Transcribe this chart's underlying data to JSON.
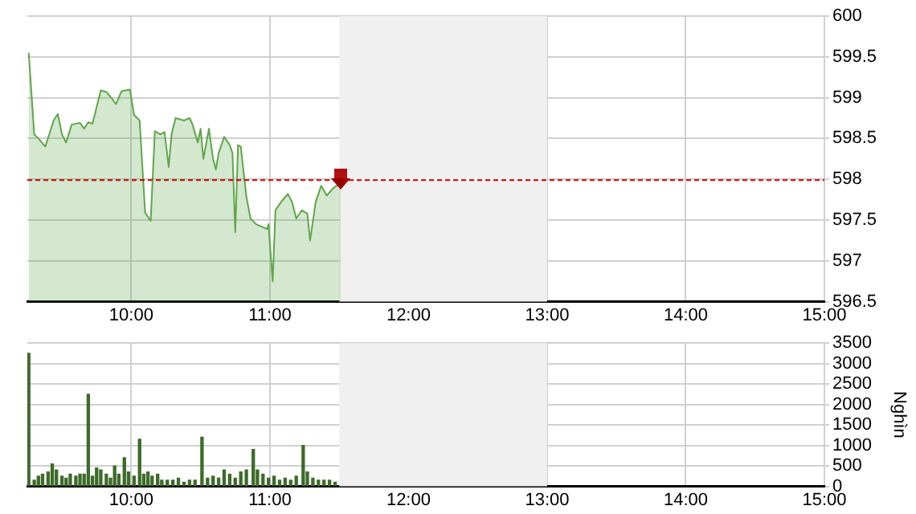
{
  "chart_data": [
    {
      "type": "area",
      "legend": false,
      "grid": true,
      "marker": "none",
      "xlim": [
        9.25,
        15
      ],
      "xticks": [
        {
          "value": 10,
          "label": "10:00"
        },
        {
          "value": 11,
          "label": "11:00"
        },
        {
          "value": 12,
          "label": "12:00"
        },
        {
          "value": 13,
          "label": "13:00"
        },
        {
          "value": 14,
          "label": "14:00"
        },
        {
          "value": 15,
          "label": "15:00"
        }
      ],
      "ylim": [
        596.5,
        600
      ],
      "yticks": [
        596.5,
        597,
        597.5,
        598,
        598.5,
        599,
        599.5,
        600
      ],
      "x": [
        9.26,
        9.3,
        9.33,
        9.38,
        9.44,
        9.47,
        9.5,
        9.53,
        9.57,
        9.63,
        9.66,
        9.69,
        9.72,
        9.78,
        9.82,
        9.86,
        9.89,
        9.93,
        9.99,
        10.02,
        10.06,
        10.1,
        10.14,
        10.17,
        10.21,
        10.24,
        10.27,
        10.29,
        10.32,
        10.38,
        10.42,
        10.44,
        10.48,
        10.5,
        10.52,
        10.56,
        10.59,
        10.61,
        10.63,
        10.67,
        10.71,
        10.73,
        10.75,
        10.77,
        10.79,
        10.83,
        10.86,
        10.9,
        10.94,
        10.98,
        10.99,
        11.02,
        11.04,
        11.08,
        11.13,
        11.16,
        11.19,
        11.23,
        11.27,
        11.29,
        11.33,
        11.37,
        11.41,
        11.45,
        11.48,
        11.51
      ],
      "series": [
        {
          "color": "#5fa64a",
          "values": [
            599.55,
            598.55,
            598.5,
            598.4,
            598.72,
            598.8,
            598.55,
            598.45,
            598.67,
            598.69,
            598.62,
            598.7,
            598.68,
            599.09,
            599.07,
            598.99,
            598.92,
            599.08,
            599.1,
            598.79,
            598.72,
            597.59,
            597.49,
            598.59,
            598.55,
            598.58,
            598.15,
            598.55,
            598.75,
            598.72,
            598.75,
            598.68,
            598.45,
            598.62,
            598.25,
            598.62,
            598.25,
            598.12,
            598.32,
            598.52,
            598.42,
            598.32,
            597.35,
            598.42,
            598.4,
            597.79,
            597.52,
            597.45,
            597.42,
            597.39,
            597.45,
            596.75,
            597.62,
            597.72,
            597.82,
            597.72,
            597.52,
            597.62,
            597.58,
            597.25,
            597.72,
            597.92,
            597.8,
            597.88,
            597.92,
            597.95
          ]
        }
      ],
      "ref_lines": [
        {
          "axis": "y",
          "value": 598,
          "color": "#cc0000",
          "line_style": "dashed"
        }
      ],
      "bands": [
        {
          "axis": "x",
          "from": 11.5,
          "to": 13,
          "color": "#f0f0f0"
        }
      ]
    },
    {
      "type": "bar",
      "legend": false,
      "grid": true,
      "ylabel": "Nghìn",
      "xlim": [
        9.25,
        15
      ],
      "xticks": [
        {
          "value": 10,
          "label": "10:00"
        },
        {
          "value": 11,
          "label": "11:00"
        },
        {
          "value": 12,
          "label": "12:00"
        },
        {
          "value": 13,
          "label": "13:00"
        },
        {
          "value": 14,
          "label": "14:00"
        },
        {
          "value": 15,
          "label": "15:00"
        }
      ],
      "ylim": [
        0,
        3500
      ],
      "yticks": [
        0,
        500,
        1000,
        1500,
        2000,
        2500,
        3000,
        3500
      ],
      "x": [
        9.26,
        9.3,
        9.33,
        9.36,
        9.4,
        9.43,
        9.46,
        9.5,
        9.53,
        9.56,
        9.6,
        9.63,
        9.66,
        9.69,
        9.72,
        9.75,
        9.78,
        9.82,
        9.85,
        9.88,
        9.91,
        9.95,
        9.98,
        10.02,
        10.06,
        10.09,
        10.12,
        10.15,
        10.19,
        10.22,
        10.26,
        10.3,
        10.34,
        10.38,
        10.42,
        10.46,
        10.51,
        10.55,
        10.59,
        10.63,
        10.67,
        10.71,
        10.75,
        10.79,
        10.83,
        10.88,
        10.91,
        10.95,
        10.99,
        11.03,
        11.07,
        11.11,
        11.15,
        11.19,
        11.24,
        11.27,
        11.31,
        11.35,
        11.39,
        11.43,
        11.47
      ],
      "series": [
        {
          "color": "#3d6b2a",
          "values": [
            3250,
            150,
            250,
            300,
            350,
            550,
            400,
            250,
            200,
            300,
            250,
            300,
            300,
            2250,
            250,
            450,
            400,
            300,
            200,
            500,
            300,
            700,
            350,
            250,
            1150,
            300,
            350,
            250,
            300,
            150,
            150,
            150,
            200,
            100,
            150,
            150,
            1200,
            200,
            250,
            200,
            400,
            300,
            200,
            350,
            400,
            900,
            400,
            300,
            200,
            250,
            150,
            200,
            150,
            250,
            1000,
            350,
            200,
            150,
            150,
            150,
            100
          ]
        }
      ],
      "bands": [
        {
          "axis": "x",
          "from": 11.5,
          "to": 13,
          "color": "#f0f0f0"
        }
      ]
    }
  ]
}
